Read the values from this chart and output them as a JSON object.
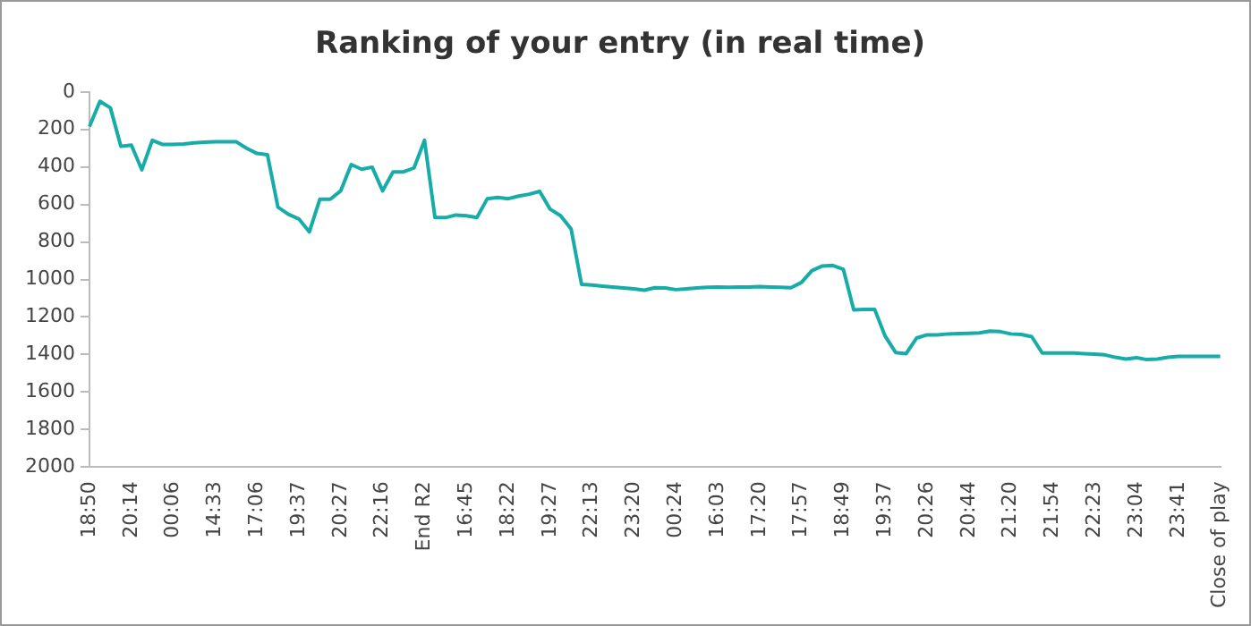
{
  "chart_data": {
    "type": "line",
    "title": "Ranking of your entry (in real time)",
    "categories": [
      "18:50",
      null,
      null,
      null,
      "20:14",
      null,
      null,
      null,
      "00:06",
      null,
      null,
      null,
      "14:33",
      null,
      null,
      null,
      "17:06",
      null,
      null,
      null,
      "19:37",
      null,
      null,
      null,
      "20:27",
      null,
      null,
      null,
      "22:16",
      null,
      null,
      null,
      "End R2",
      null,
      null,
      null,
      "16:45",
      null,
      null,
      null,
      "18:22",
      null,
      null,
      null,
      "19:27",
      null,
      null,
      null,
      "22:13",
      null,
      null,
      null,
      "23:20",
      null,
      null,
      null,
      "00:24",
      null,
      null,
      null,
      "16:03",
      null,
      null,
      null,
      "17:20",
      null,
      null,
      null,
      "17:57",
      null,
      null,
      null,
      "18:49",
      null,
      null,
      null,
      "19:37",
      null,
      null,
      null,
      "20:26",
      null,
      null,
      null,
      "20:44",
      null,
      null,
      null,
      "21:20",
      null,
      null,
      null,
      "21:54",
      null,
      null,
      null,
      "22:23",
      null,
      null,
      null,
      "23:04",
      null,
      null,
      null,
      "23:41",
      null,
      null,
      null,
      "Close of play"
    ],
    "series": [
      {
        "color": "#17aca7",
        "values": [
          185,
          50,
          85,
          290,
          283,
          415,
          258,
          280,
          280,
          278,
          272,
          268,
          265,
          265,
          265,
          300,
          328,
          335,
          614,
          652,
          677,
          746,
          572,
          572,
          527,
          387,
          412,
          401,
          527,
          426,
          426,
          405,
          258,
          670,
          670,
          656,
          660,
          670,
          569,
          562,
          569,
          555,
          545,
          530,
          625,
          660,
          730,
          1026,
          1030,
          1035,
          1040,
          1045,
          1050,
          1057,
          1044,
          1045,
          1054,
          1050,
          1045,
          1042,
          1040,
          1042,
          1040,
          1040,
          1038,
          1040,
          1042,
          1044,
          1016,
          953,
          928,
          925,
          945,
          1162,
          1160,
          1160,
          1302,
          1389,
          1395,
          1312,
          1295,
          1295,
          1290,
          1288,
          1287,
          1285,
          1275,
          1278,
          1290,
          1293,
          1305,
          1392,
          1392,
          1392,
          1392,
          1395,
          1398,
          1402,
          1415,
          1424,
          1417,
          1427,
          1424,
          1415,
          1410,
          1410,
          1410,
          1410,
          1410
        ]
      }
    ],
    "ylim": [
      2000,
      0
    ],
    "yticks": [
      0,
      200,
      400,
      600,
      800,
      1000,
      1200,
      1400,
      1600,
      1800,
      2000
    ],
    "grid": false,
    "legend": false,
    "marker": "none",
    "line_style": "solid"
  }
}
